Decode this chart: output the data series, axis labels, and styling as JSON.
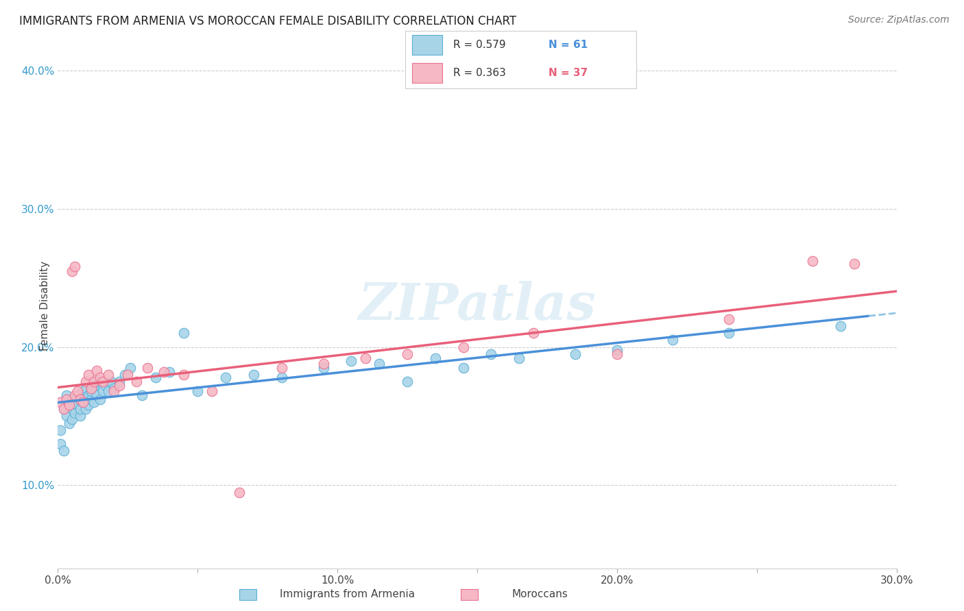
{
  "title": "IMMIGRANTS FROM ARMENIA VS MOROCCAN FEMALE DISABILITY CORRELATION CHART",
  "source": "Source: ZipAtlas.com",
  "ylabel": "Female Disability",
  "xlim": [
    0.0,
    0.3
  ],
  "ylim": [
    0.04,
    0.42
  ],
  "color_armenia": "#A8D4E8",
  "color_armenia_edge": "#5BAED6",
  "color_morocco": "#F5B8C4",
  "color_morocco_edge": "#E87090",
  "color_armenia_line": "#4A90D9",
  "color_morocco_line": "#E8607A",
  "color_armenia_line_dashed": "#90C4E4",
  "watermark": "ZIPatlas",
  "armenia_x": [
    0.001,
    0.001,
    0.002,
    0.002,
    0.003,
    0.003,
    0.004,
    0.004,
    0.005,
    0.005,
    0.005,
    0.006,
    0.006,
    0.007,
    0.007,
    0.008,
    0.008,
    0.008,
    0.009,
    0.009,
    0.01,
    0.01,
    0.01,
    0.011,
    0.011,
    0.012,
    0.012,
    0.013,
    0.013,
    0.014,
    0.014,
    0.015,
    0.016,
    0.017,
    0.018,
    0.019,
    0.02,
    0.022,
    0.024,
    0.026,
    0.03,
    0.035,
    0.04,
    0.045,
    0.05,
    0.06,
    0.07,
    0.08,
    0.095,
    0.105,
    0.115,
    0.125,
    0.135,
    0.145,
    0.155,
    0.165,
    0.185,
    0.2,
    0.22,
    0.24,
    0.28
  ],
  "armenia_y": [
    0.14,
    0.13,
    0.155,
    0.125,
    0.15,
    0.165,
    0.145,
    0.16,
    0.148,
    0.158,
    0.155,
    0.152,
    0.162,
    0.158,
    0.165,
    0.15,
    0.155,
    0.162,
    0.16,
    0.168,
    0.155,
    0.162,
    0.17,
    0.158,
    0.165,
    0.162,
    0.168,
    0.16,
    0.172,
    0.165,
    0.175,
    0.162,
    0.168,
    0.172,
    0.168,
    0.175,
    0.17,
    0.175,
    0.18,
    0.185,
    0.165,
    0.178,
    0.182,
    0.21,
    0.168,
    0.178,
    0.18,
    0.178,
    0.185,
    0.19,
    0.188,
    0.175,
    0.192,
    0.185,
    0.195,
    0.192,
    0.195,
    0.198,
    0.205,
    0.21,
    0.215
  ],
  "morocco_x": [
    0.001,
    0.002,
    0.003,
    0.004,
    0.005,
    0.006,
    0.006,
    0.007,
    0.008,
    0.009,
    0.01,
    0.011,
    0.012,
    0.013,
    0.014,
    0.015,
    0.016,
    0.018,
    0.02,
    0.022,
    0.025,
    0.028,
    0.032,
    0.038,
    0.045,
    0.055,
    0.065,
    0.08,
    0.095,
    0.11,
    0.125,
    0.145,
    0.17,
    0.2,
    0.24,
    0.27,
    0.285
  ],
  "morocco_y": [
    0.16,
    0.155,
    0.162,
    0.158,
    0.255,
    0.258,
    0.165,
    0.168,
    0.162,
    0.16,
    0.175,
    0.18,
    0.17,
    0.175,
    0.183,
    0.178,
    0.175,
    0.18,
    0.168,
    0.172,
    0.18,
    0.175,
    0.185,
    0.182,
    0.18,
    0.168,
    0.095,
    0.185,
    0.188,
    0.192,
    0.195,
    0.2,
    0.21,
    0.195,
    0.22,
    0.262,
    0.26
  ]
}
